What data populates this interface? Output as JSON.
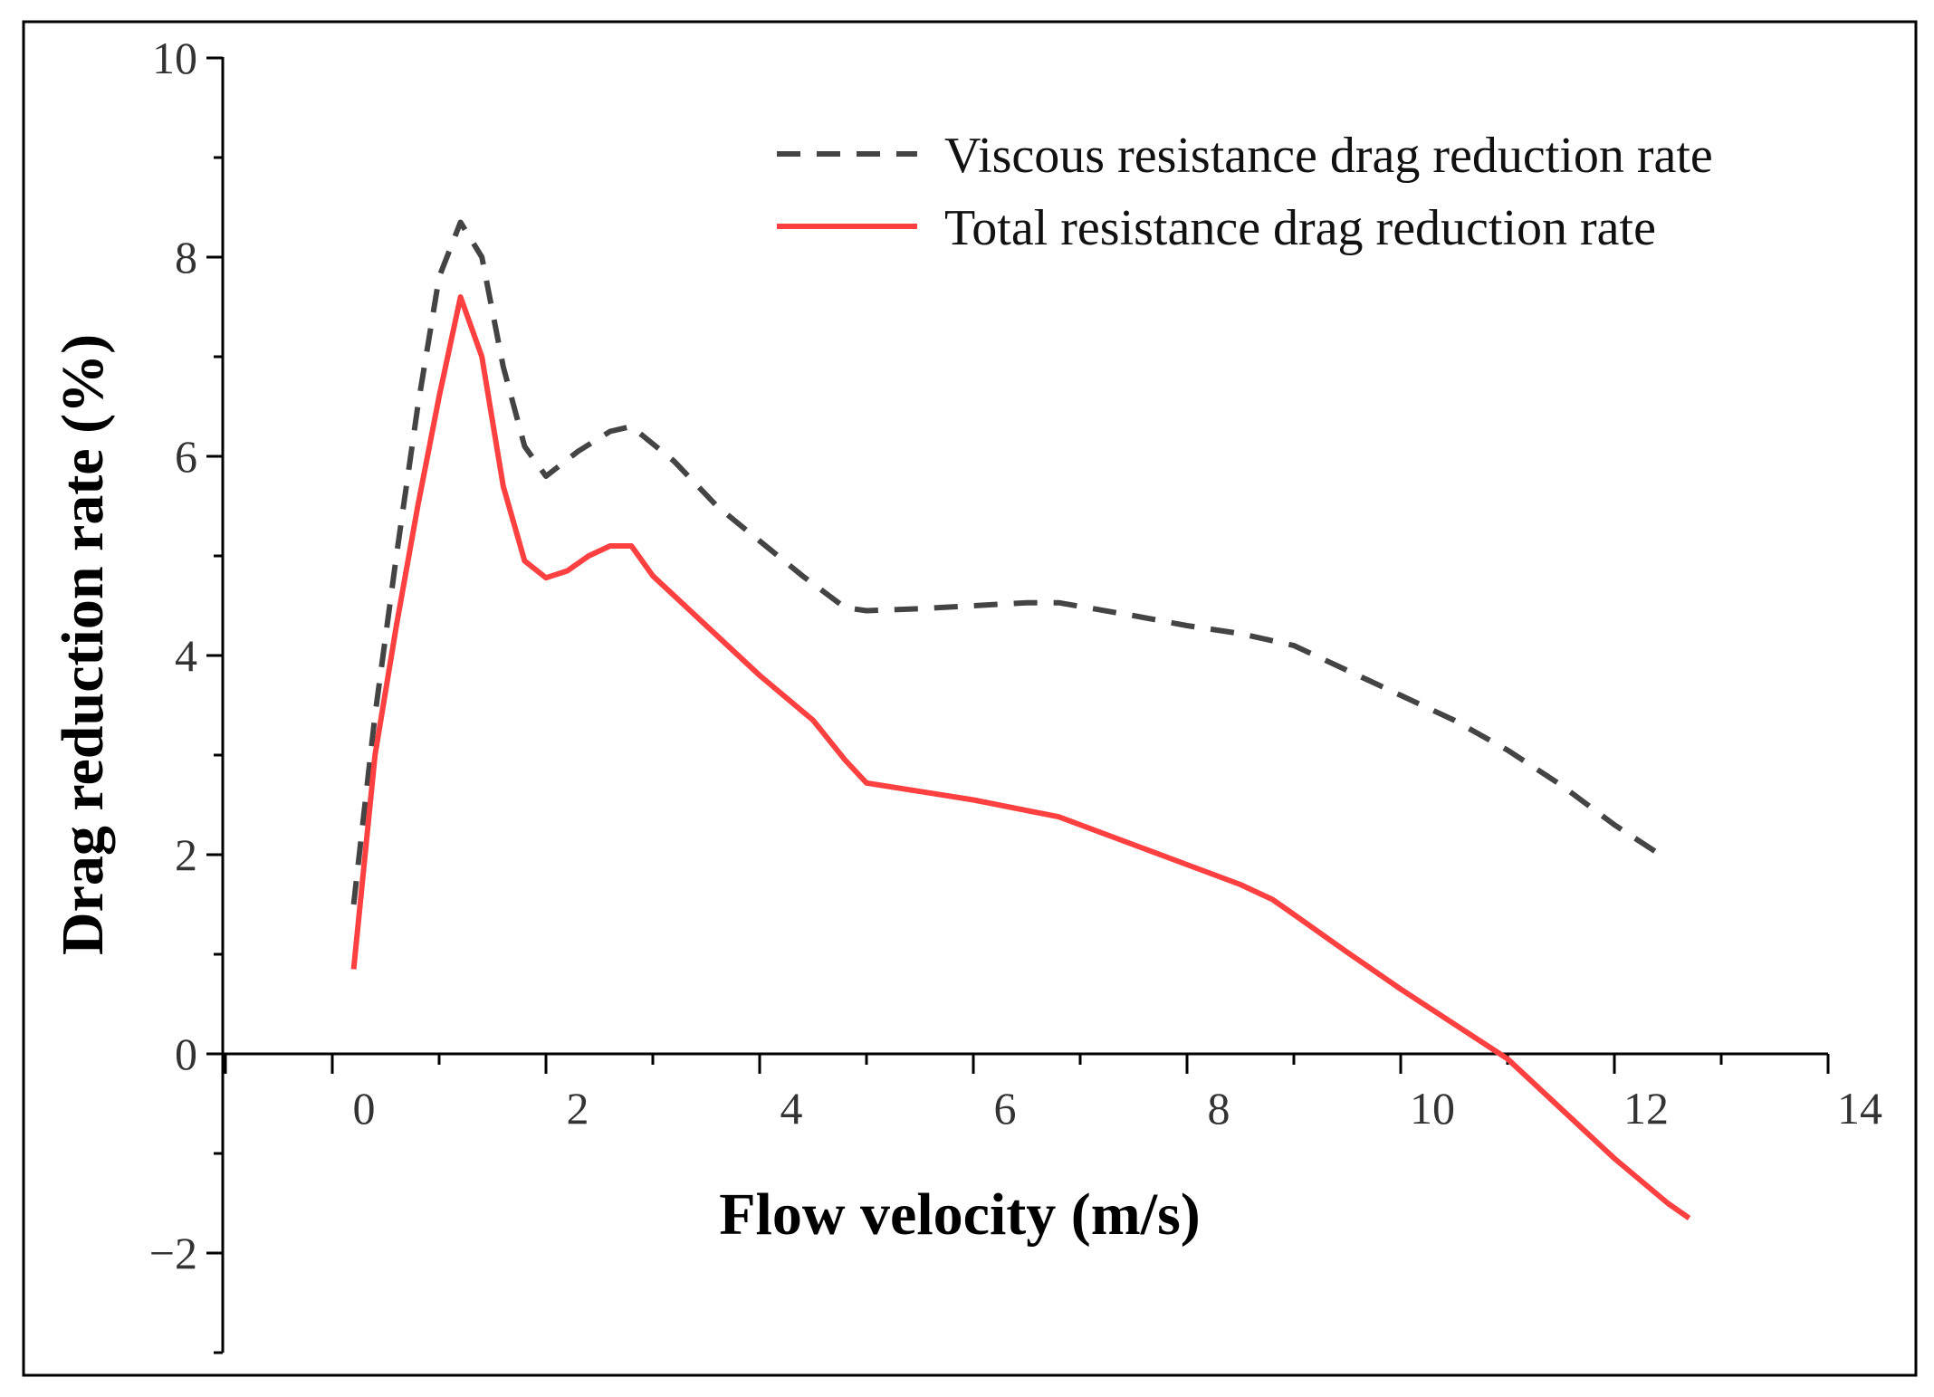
{
  "chart_data": {
    "type": "line",
    "title": "",
    "xlabel": "Flow velocity (m/s)",
    "ylabel": "Drag reduction rate (%)",
    "xlim": [
      -1.1,
      14
    ],
    "ylim": [
      -3,
      10
    ],
    "xticks": [
      0,
      2,
      4,
      6,
      8,
      10,
      12,
      14
    ],
    "xtick_labels": [
      "0",
      "2",
      "4",
      "6",
      "8",
      "10",
      "12",
      "14"
    ],
    "yticks": [
      -2,
      0,
      2,
      4,
      6,
      8,
      10
    ],
    "ytick_labels": [
      "−2",
      "0",
      "2",
      "4",
      "6",
      "8",
      "10"
    ],
    "grid": false,
    "legend_position": "top-right",
    "series": [
      {
        "name": "Viscous resistance drag reduction rate",
        "style": "dashed",
        "color": "#444444",
        "x": [
          0.2,
          0.4,
          0.6,
          0.8,
          1.0,
          1.2,
          1.4,
          1.6,
          1.8,
          2.0,
          2.3,
          2.6,
          2.8,
          3.2,
          3.6,
          4.0,
          4.4,
          4.8,
          5.0,
          5.5,
          6.0,
          6.5,
          6.8,
          7.5,
          8.0,
          8.5,
          9.0,
          9.5,
          10.0,
          10.5,
          11.0,
          11.5,
          12.0,
          12.5
        ],
        "y": [
          1.5,
          3.4,
          5.0,
          6.5,
          7.8,
          8.35,
          8.0,
          6.9,
          6.1,
          5.8,
          6.05,
          6.25,
          6.3,
          5.95,
          5.5,
          5.15,
          4.8,
          4.48,
          4.45,
          4.47,
          4.5,
          4.53,
          4.53,
          4.4,
          4.3,
          4.22,
          4.1,
          3.85,
          3.6,
          3.35,
          3.05,
          2.7,
          2.3,
          1.95
        ]
      },
      {
        "name": "Total resistance drag reduction rate",
        "style": "solid",
        "color": "#ff4040",
        "x": [
          0.2,
          0.4,
          0.6,
          0.8,
          1.0,
          1.2,
          1.4,
          1.6,
          1.8,
          2.0,
          2.2,
          2.4,
          2.6,
          2.8,
          3.0,
          3.5,
          4.0,
          4.5,
          4.8,
          5.0,
          6.0,
          6.8,
          7.5,
          8.0,
          8.5,
          8.8,
          9.0,
          9.5,
          10.0,
          10.5,
          11.0,
          11.5,
          12.0,
          12.5,
          12.7
        ],
        "y": [
          0.85,
          3.0,
          4.3,
          5.5,
          6.6,
          7.6,
          7.0,
          5.7,
          4.95,
          4.78,
          4.85,
          5.0,
          5.1,
          5.1,
          4.8,
          4.3,
          3.8,
          3.35,
          2.95,
          2.72,
          2.55,
          2.38,
          2.1,
          1.9,
          1.7,
          1.55,
          1.4,
          1.02,
          0.65,
          0.3,
          -0.05,
          -0.55,
          -1.05,
          -1.5,
          -1.65
        ]
      }
    ]
  }
}
